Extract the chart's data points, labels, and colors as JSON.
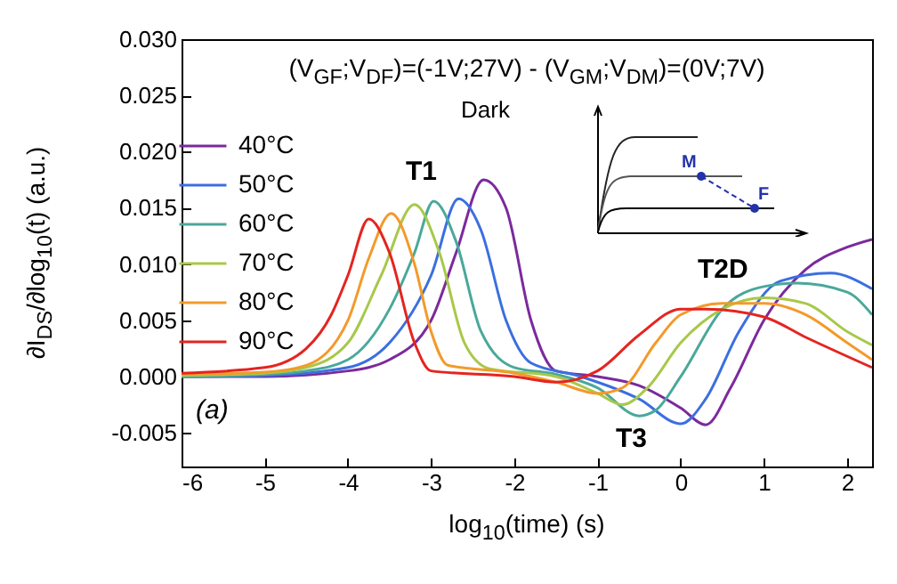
{
  "chart_data": {
    "type": "line",
    "title": "(V$_{GF}$;V$_{DF}$)=(-1V;27V) - (V$_{GM}$;V$_{DM}$)=(0V;7V)",
    "xlabel": "log$_{10}$(time) (s)",
    "ylabel": "∂I$_{DS}$/∂log$_{10}$(t) (a.u.)",
    "xlim": [
      -6,
      2.3
    ],
    "xticks": [
      -6,
      -5,
      -4,
      -3,
      -2,
      -1,
      0,
      1,
      2
    ],
    "ylim": [
      -0.008,
      0.03
    ],
    "yticks": [
      {
        "value": -0.005,
        "label": "-0.005"
      },
      {
        "value": 0,
        "label": "0.000"
      },
      {
        "value": 0.005,
        "label": "0.005"
      },
      {
        "value": 0.01,
        "label": "0.010"
      },
      {
        "value": 0.015,
        "label": "0.015"
      },
      {
        "value": 0.02,
        "label": "0.020"
      },
      {
        "value": 0.025,
        "label": "0.025"
      },
      {
        "value": 0.03,
        "label": "0.030"
      }
    ],
    "legend": "top left",
    "grid": false,
    "marker": "none",
    "line_style": "solid",
    "annotations": [
      "(a)",
      "Dark",
      "M",
      "F",
      "T1",
      "T2D",
      "T3"
    ],
    "series": [
      {
        "name": "40°C",
        "color": "#7b2a9c",
        "x": [
          -6,
          -5,
          -4,
          -3.5,
          -3,
          -2.7,
          -2.37,
          -2.1,
          -1.8,
          -1.5,
          -1,
          -0.5,
          0,
          0.3,
          0.6,
          1,
          1.5,
          2,
          2.3
        ],
        "values": [
          0.0,
          0.0,
          0.0005,
          0.0015,
          0.005,
          0.011,
          0.0175,
          0.015,
          0.005,
          0.0005,
          0.0,
          -0.0008,
          -0.0028,
          -0.0043,
          -0.001,
          0.005,
          0.0095,
          0.0115,
          0.0122
        ]
      },
      {
        "name": "50°C",
        "color": "#3b6fe0",
        "x": [
          -6,
          -5,
          -4,
          -3.5,
          -3,
          -2.67,
          -2.4,
          -2.1,
          -1.8,
          -1.2,
          -0.5,
          0,
          0.3,
          0.7,
          1.2,
          1.8,
          2.3
        ],
        "values": [
          0.0,
          0.0001,
          0.0008,
          0.003,
          0.009,
          0.0158,
          0.013,
          0.005,
          0.0012,
          0.0,
          -0.002,
          -0.0042,
          -0.002,
          0.004,
          0.0085,
          0.0092,
          0.0078
        ]
      },
      {
        "name": "60°C",
        "color": "#4aa89a",
        "x": [
          -6,
          -5,
          -4.5,
          -4,
          -3.5,
          -3.2,
          -2.97,
          -2.7,
          -2.4,
          -2,
          -1.5,
          -1,
          -0.5,
          -0.3,
          0,
          0.5,
          1,
          1.4,
          2,
          2.3
        ],
        "values": [
          0.0,
          0.0002,
          0.0005,
          0.0015,
          0.006,
          0.011,
          0.0156,
          0.012,
          0.004,
          0.0008,
          0.0002,
          -0.001,
          -0.0035,
          -0.003,
          0.0,
          0.006,
          0.008,
          0.0083,
          0.0075,
          0.0055
        ]
      },
      {
        "name": "70°C",
        "color": "#a8c84a",
        "x": [
          -6,
          -5,
          -4.5,
          -4,
          -3.6,
          -3.2,
          -2.9,
          -2.6,
          -2.3,
          -1.5,
          -1,
          -0.7,
          -0.4,
          0,
          0.5,
          1,
          1.5,
          2,
          2.3
        ],
        "values": [
          0.0001,
          0.0003,
          0.0008,
          0.003,
          0.009,
          0.0153,
          0.011,
          0.003,
          0.0007,
          0.0,
          -0.0015,
          -0.0025,
          -0.001,
          0.003,
          0.006,
          0.007,
          0.0065,
          0.004,
          0.0028
        ]
      },
      {
        "name": "80°C",
        "color": "#f39a2a",
        "x": [
          -6,
          -5,
          -4.5,
          -4,
          -3.75,
          -3.48,
          -3.2,
          -3,
          -2.8,
          -2,
          -1.5,
          -1,
          -0.7,
          -0.3,
          0,
          0.5,
          1,
          1.5,
          2,
          2.3
        ],
        "values": [
          0.0002,
          0.0004,
          0.001,
          0.005,
          0.0105,
          0.0145,
          0.01,
          0.004,
          0.001,
          0.0003,
          -0.0005,
          -0.0015,
          -0.001,
          0.003,
          0.0055,
          0.0065,
          0.0065,
          0.0055,
          0.003,
          0.0015
        ]
      },
      {
        "name": "90°C",
        "color": "#e52420",
        "x": [
          -6,
          -5,
          -4.5,
          -4.2,
          -4,
          -3.75,
          -3.5,
          -3.2,
          -3,
          -2,
          -1.5,
          -1,
          -0.5,
          0,
          0.3,
          1,
          1.5,
          2.3
        ],
        "values": [
          0.0003,
          0.0008,
          0.0025,
          0.0055,
          0.009,
          0.014,
          0.011,
          0.003,
          0.0005,
          0.0,
          -0.0005,
          0.0005,
          0.0037,
          0.006,
          0.006,
          0.0053,
          0.0035,
          0.0008
        ]
      }
    ]
  }
}
